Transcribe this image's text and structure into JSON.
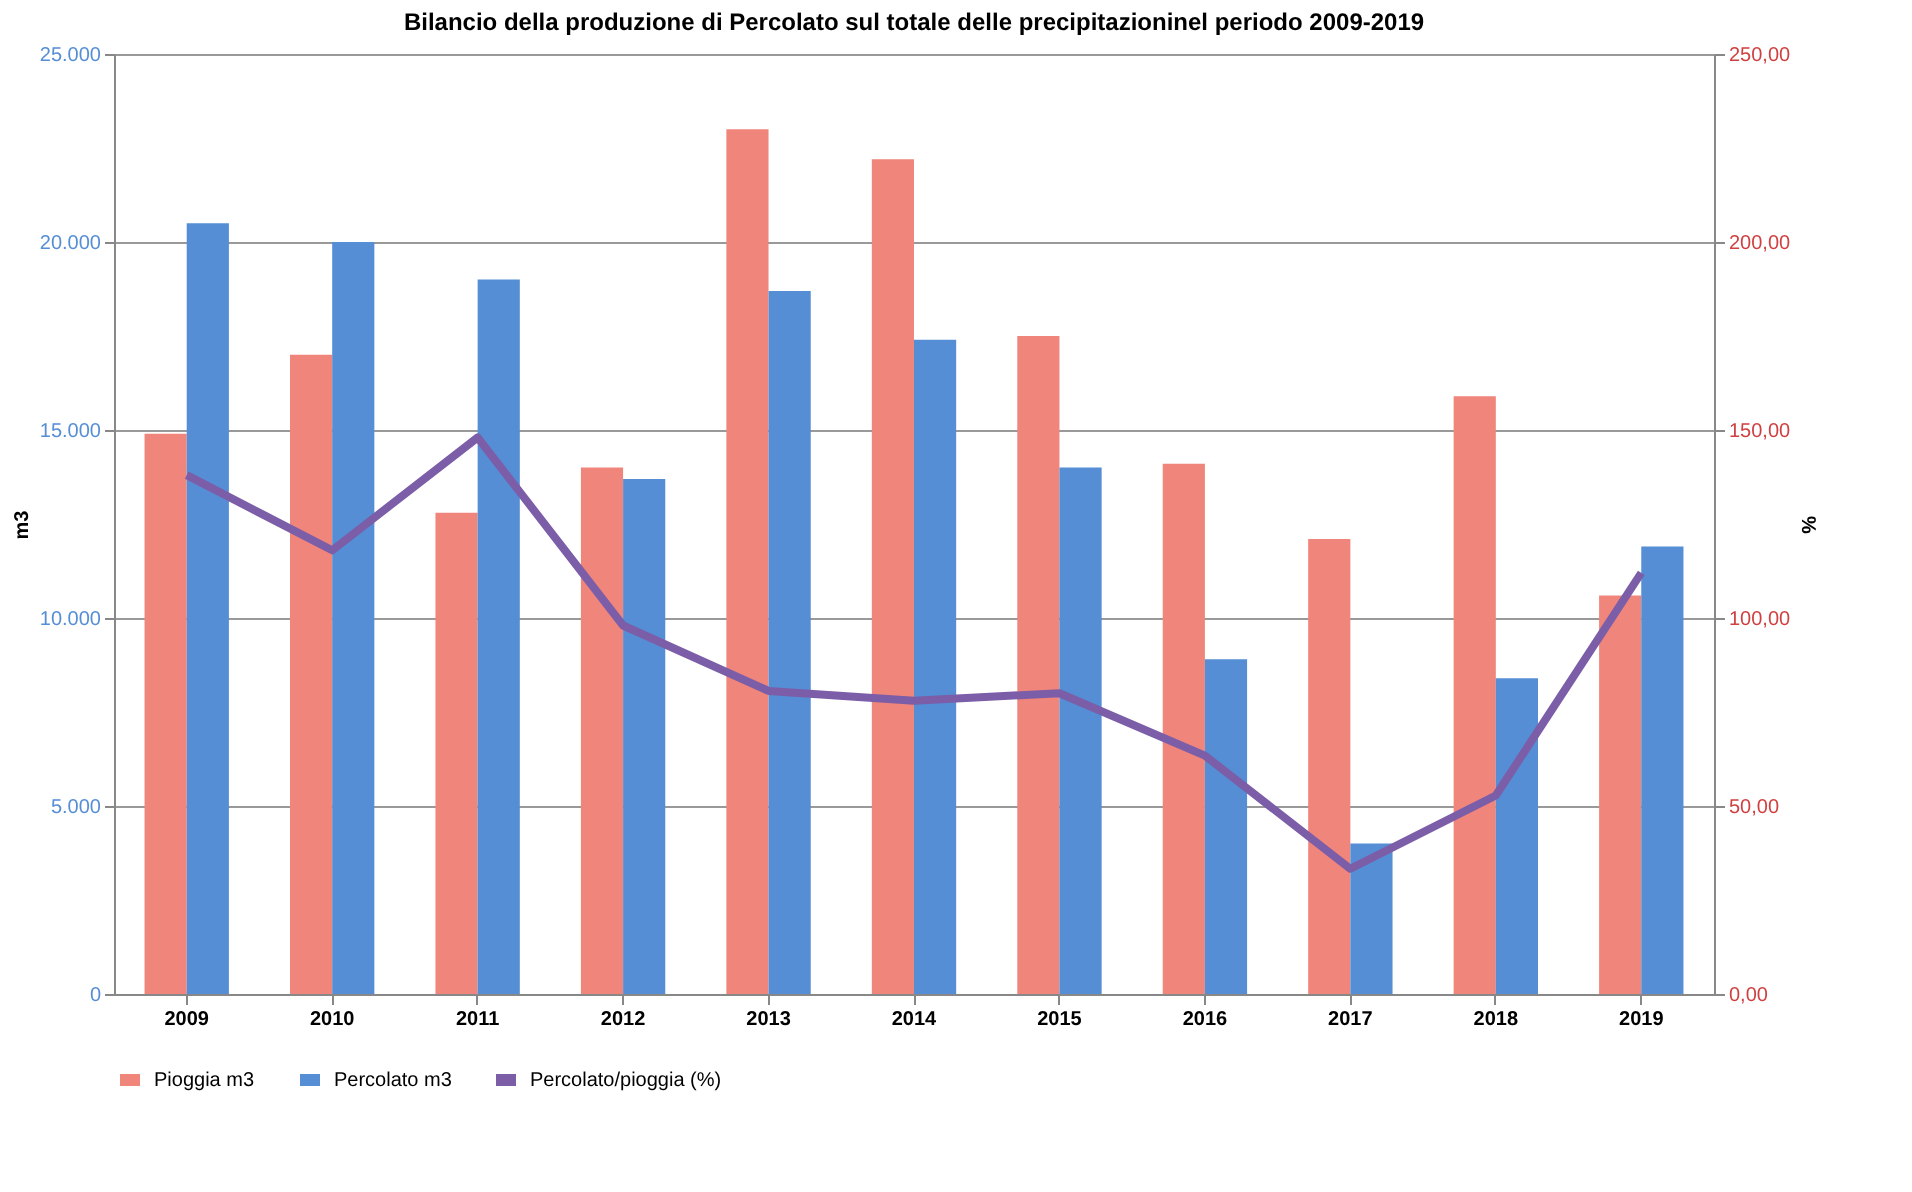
{
  "chart_data": {
    "type": "bar",
    "title": "Bilancio della produzione di Percolato sul totale delle precipitazioninel periodo 2009-2019",
    "categories": [
      "2009",
      "2010",
      "2011",
      "2012",
      "2013",
      "2014",
      "2015",
      "2016",
      "2017",
      "2018",
      "2019"
    ],
    "series": [
      {
        "name": "Pioggia m3",
        "color": "#f0857b",
        "values": [
          14900,
          17000,
          12800,
          14000,
          23000,
          22200,
          17500,
          14100,
          12100,
          15900,
          10600
        ]
      },
      {
        "name": "Percolato m3",
        "color": "#558ed5",
        "values": [
          20500,
          20000,
          19000,
          13700,
          18700,
          17400,
          14000,
          8900,
          4000,
          8400,
          11900
        ]
      },
      {
        "name": "Percolato/pioggia (%)",
        "type": "line",
        "axis": "y2",
        "color": "#7b5ea7",
        "values": [
          138,
          118,
          148,
          98,
          80.6,
          78,
          80,
          63.4,
          33.3,
          52.8,
          112
        ]
      }
    ],
    "ylabel": "m3",
    "y2label": "%",
    "ylim": [
      0,
      25000
    ],
    "yticks": [
      {
        "value": 0,
        "label": "0"
      },
      {
        "value": 5000,
        "label": "5.000"
      },
      {
        "value": 10000,
        "label": "10.000"
      },
      {
        "value": 15000,
        "label": "15.000"
      },
      {
        "value": 20000,
        "label": "20.000"
      },
      {
        "value": 25000,
        "label": "25.000"
      }
    ],
    "y2lim": [
      0,
      250
    ],
    "y2ticks": [
      {
        "value": 0,
        "label": "0,00"
      },
      {
        "value": 50,
        "label": "50,00"
      },
      {
        "value": 100,
        "label": "100,00"
      },
      {
        "value": 150,
        "label": "150,00"
      },
      {
        "value": 200,
        "label": "200,00"
      },
      {
        "value": 250,
        "label": "250,00"
      }
    ],
    "grid": "y",
    "legend": "bottom"
  }
}
